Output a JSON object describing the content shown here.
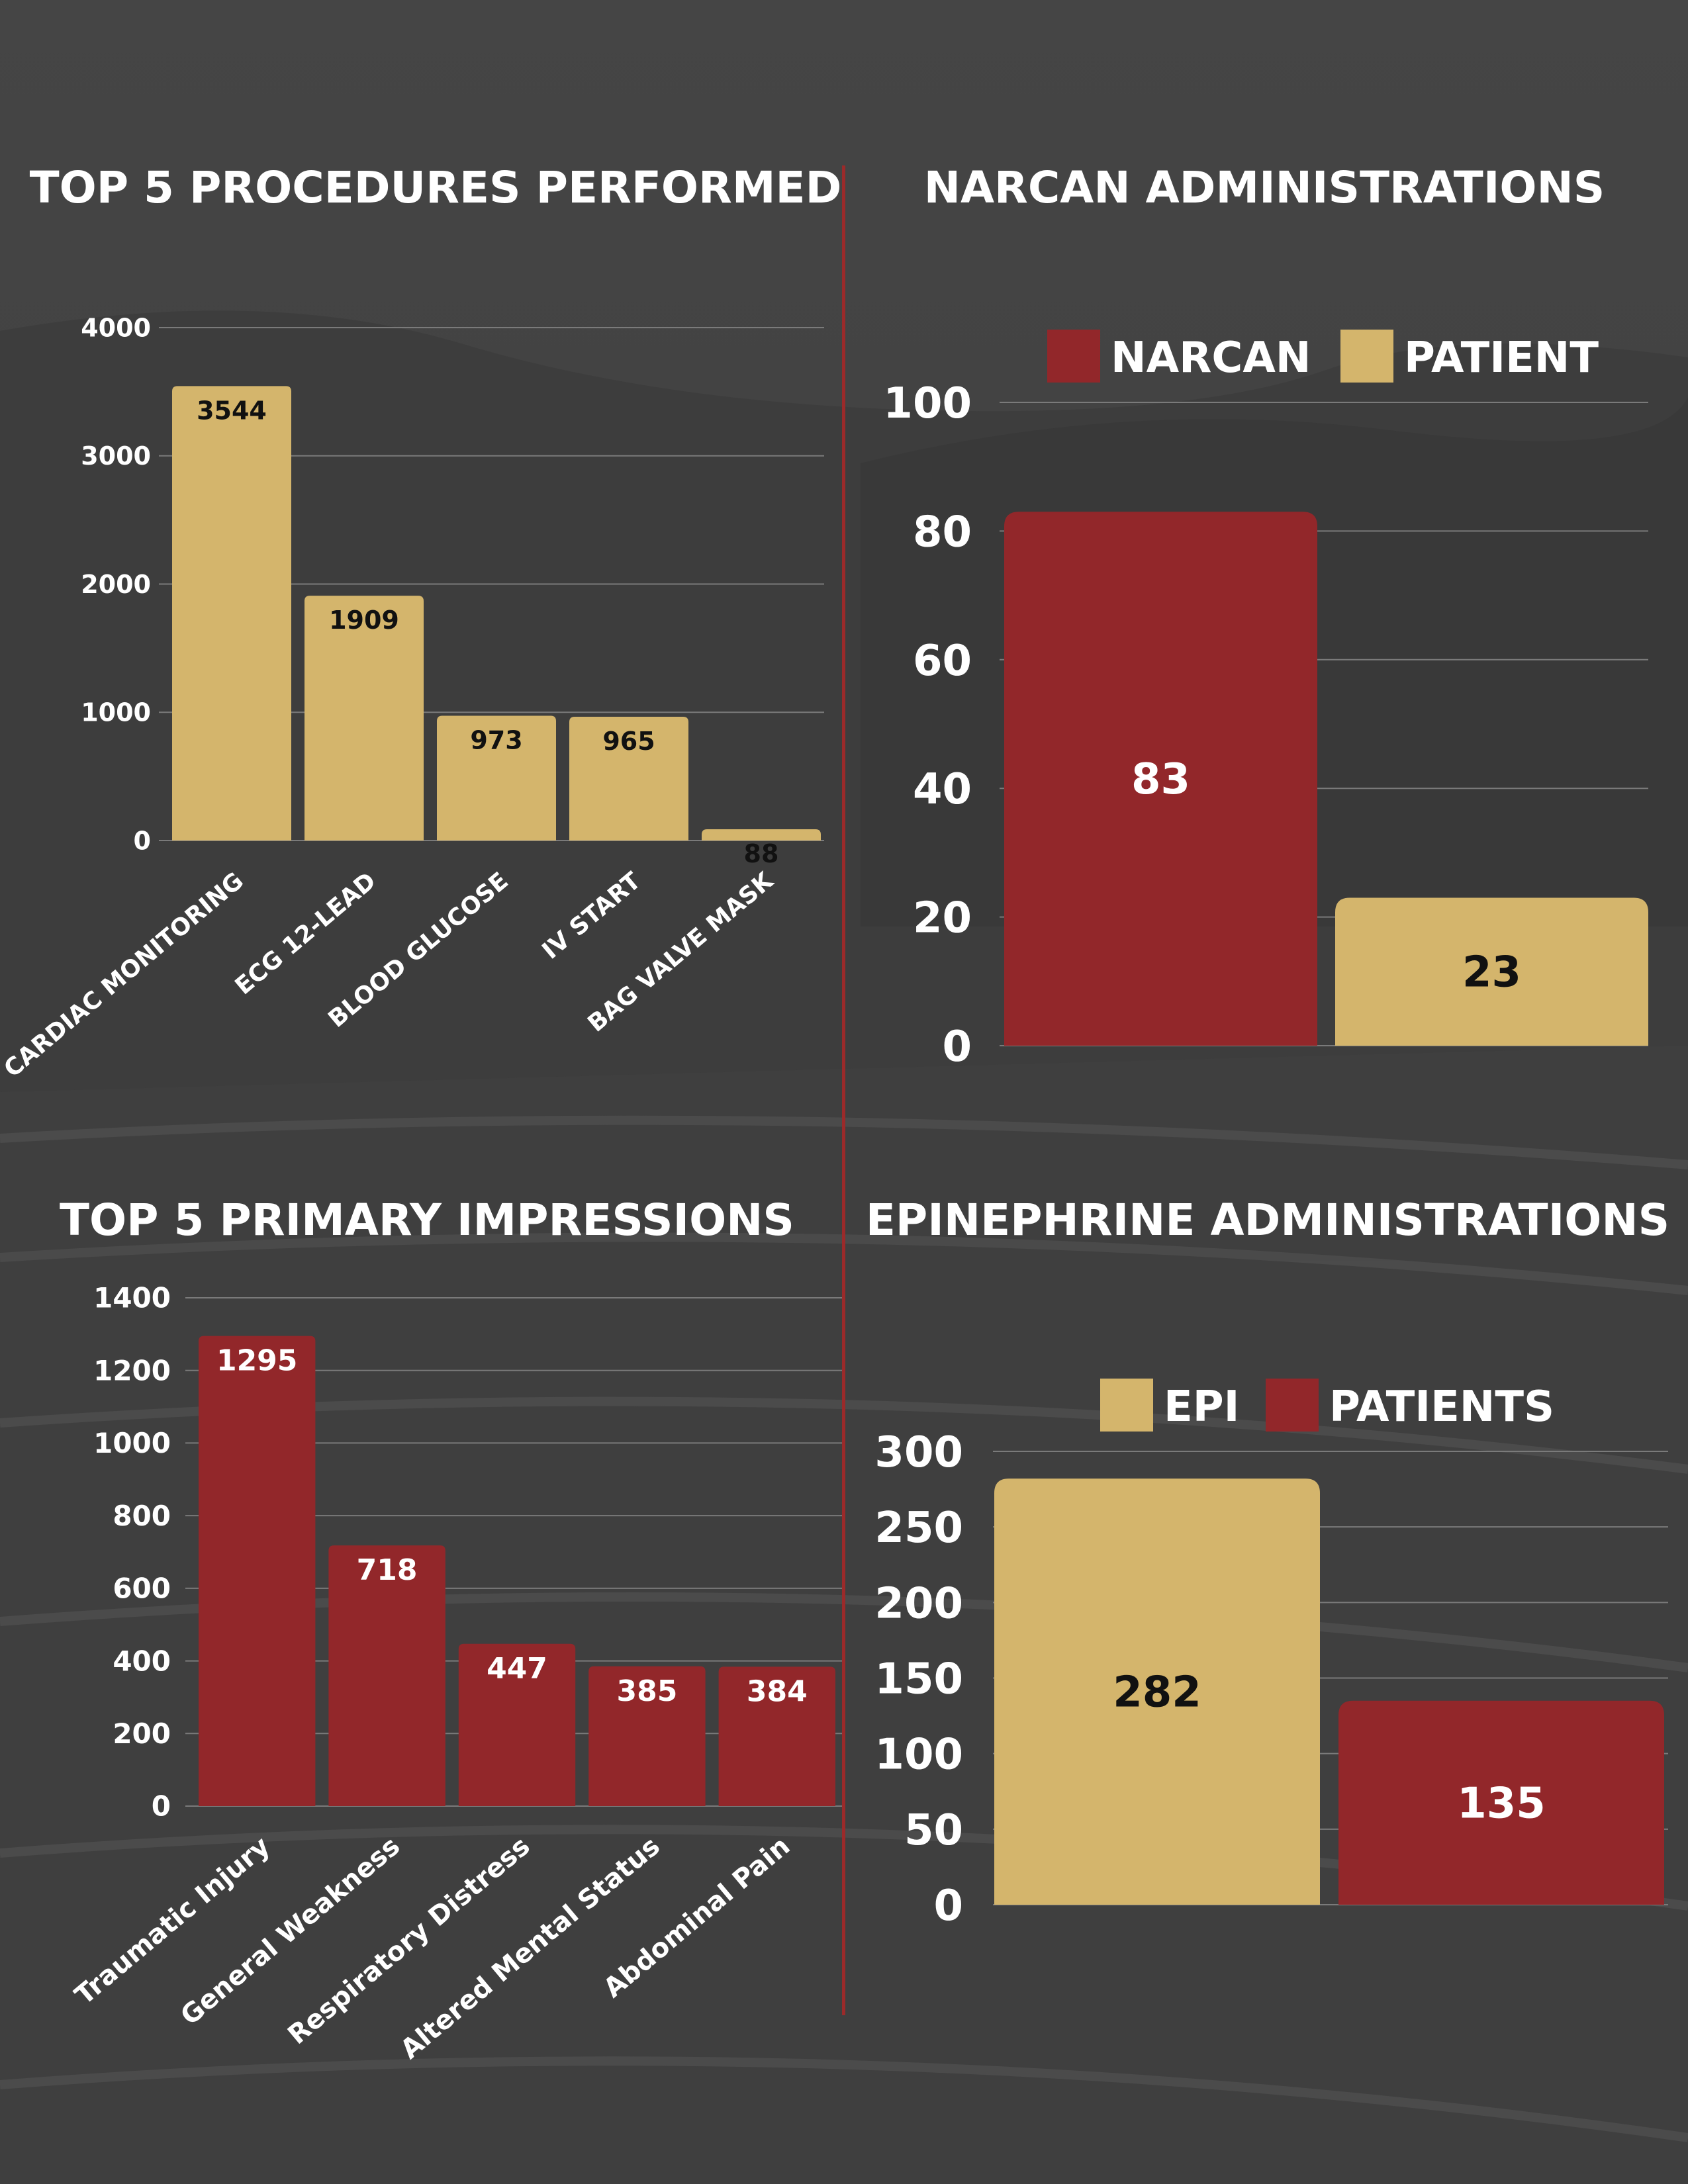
{
  "colors": {
    "gold": "#d4b56c",
    "red": "#92272a",
    "background": "#424242",
    "grid": "#7a7a7a"
  },
  "chart_data": [
    {
      "id": "procedures",
      "type": "bar",
      "title": "TOP 5 PROCEDURES PERFORMED",
      "categories": [
        "CARDIAC MONITORING",
        "ECG 12-LEAD",
        "BLOOD GLUCOSE",
        "IV START",
        "BAG VALVE MASK"
      ],
      "values": [
        3544,
        1909,
        973,
        965,
        88
      ],
      "yticks": [
        0,
        1000,
        2000,
        3000,
        4000
      ],
      "ylim": [
        0,
        4000
      ],
      "color": "#d4b56c",
      "grid": true
    },
    {
      "id": "narcan",
      "type": "bar",
      "title": "NARCAN ADMINISTRATIONS",
      "legend": [
        {
          "name": "NARCAN",
          "color": "#92272a"
        },
        {
          "name": "PATIENT",
          "color": "#d4b56c"
        }
      ],
      "legend_position": "top",
      "series": [
        {
          "name": "NARCAN",
          "value": 83,
          "color": "#92272a"
        },
        {
          "name": "PATIENT",
          "value": 23,
          "color": "#d4b56c"
        }
      ],
      "yticks": [
        0,
        20,
        40,
        60,
        80,
        100
      ],
      "ylim": [
        0,
        100
      ],
      "grid": true
    },
    {
      "id": "impressions",
      "type": "bar",
      "title": "TOP 5 PRIMARY IMPRESSIONS",
      "categories": [
        "Traumatic Injury",
        "General Weakness",
        "Respiratory Distress",
        "Altered Mental Status",
        "Abdominal Pain"
      ],
      "values": [
        1295,
        718,
        447,
        385,
        384
      ],
      "yticks": [
        0,
        200,
        400,
        600,
        800,
        1000,
        1200,
        1400
      ],
      "ylim": [
        0,
        1400
      ],
      "color": "#92272a",
      "grid": true
    },
    {
      "id": "epinephrine",
      "type": "bar",
      "title": "EPINEPHRINE ADMINISTRATIONS",
      "legend": [
        {
          "name": "EPI",
          "color": "#d4b56c"
        },
        {
          "name": "PATIENTS",
          "color": "#92272a"
        }
      ],
      "legend_position": "top",
      "series": [
        {
          "name": "EPI",
          "value": 282,
          "color": "#d4b56c"
        },
        {
          "name": "PATIENTS",
          "value": 135,
          "color": "#92272a"
        }
      ],
      "yticks": [
        0,
        50,
        100,
        150,
        200,
        250,
        300
      ],
      "ylim": [
        0,
        300
      ],
      "grid": true
    }
  ]
}
